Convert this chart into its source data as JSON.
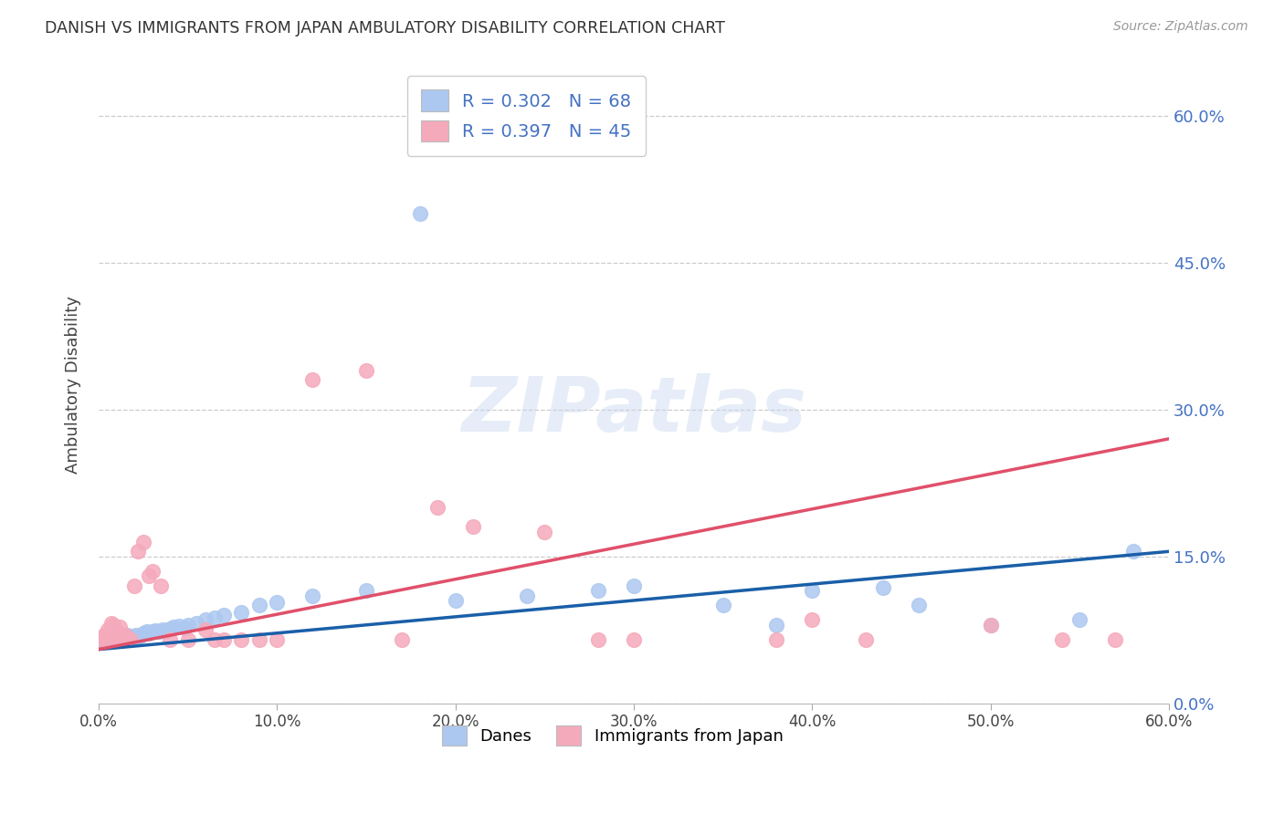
{
  "title": "DANISH VS IMMIGRANTS FROM JAPAN AMBULATORY DISABILITY CORRELATION CHART",
  "source": "Source: ZipAtlas.com",
  "ylabel": "Ambulatory Disability",
  "watermark": "ZIPatlas",
  "xlim": [
    0.0,
    0.6
  ],
  "ylim": [
    0.0,
    0.65
  ],
  "ytick_vals": [
    0.0,
    0.15,
    0.3,
    0.45,
    0.6
  ],
  "xtick_vals": [
    0.0,
    0.1,
    0.2,
    0.3,
    0.4,
    0.5,
    0.6
  ],
  "danes_R": 0.302,
  "danes_N": 68,
  "japan_R": 0.397,
  "japan_N": 45,
  "danes_scatter_color": "#adc8f0",
  "japan_scatter_color": "#f5aabb",
  "danes_line_color": "#1a5fa8",
  "japan_line_color": "#e0506a",
  "legend_text_color": "#4472c4",
  "danes_x": [
    0.001,
    0.002,
    0.003,
    0.004,
    0.005,
    0.005,
    0.006,
    0.006,
    0.007,
    0.007,
    0.008,
    0.008,
    0.009,
    0.009,
    0.01,
    0.01,
    0.011,
    0.012,
    0.012,
    0.013,
    0.014,
    0.015,
    0.016,
    0.016,
    0.017,
    0.018,
    0.019,
    0.02,
    0.021,
    0.022,
    0.023,
    0.024,
    0.025,
    0.026,
    0.027,
    0.028,
    0.03,
    0.032,
    0.034,
    0.036,
    0.038,
    0.04,
    0.042,
    0.045,
    0.048,
    0.05,
    0.055,
    0.06,
    0.065,
    0.07,
    0.08,
    0.09,
    0.1,
    0.12,
    0.15,
    0.18,
    0.2,
    0.24,
    0.28,
    0.3,
    0.35,
    0.38,
    0.4,
    0.44,
    0.46,
    0.5,
    0.55,
    0.58
  ],
  "danes_y": [
    0.063,
    0.065,
    0.067,
    0.065,
    0.066,
    0.068,
    0.065,
    0.07,
    0.065,
    0.068,
    0.066,
    0.069,
    0.065,
    0.07,
    0.066,
    0.068,
    0.067,
    0.066,
    0.069,
    0.067,
    0.068,
    0.066,
    0.067,
    0.07,
    0.068,
    0.069,
    0.067,
    0.068,
    0.07,
    0.068,
    0.069,
    0.07,
    0.071,
    0.072,
    0.073,
    0.071,
    0.073,
    0.074,
    0.073,
    0.075,
    0.074,
    0.076,
    0.078,
    0.079,
    0.077,
    0.08,
    0.082,
    0.085,
    0.087,
    0.09,
    0.093,
    0.1,
    0.103,
    0.11,
    0.115,
    0.5,
    0.105,
    0.11,
    0.115,
    0.12,
    0.1,
    0.08,
    0.115,
    0.118,
    0.1,
    0.08,
    0.085,
    0.155
  ],
  "japan_x": [
    0.001,
    0.002,
    0.003,
    0.004,
    0.005,
    0.006,
    0.007,
    0.008,
    0.009,
    0.01,
    0.011,
    0.012,
    0.013,
    0.014,
    0.015,
    0.016,
    0.018,
    0.02,
    0.022,
    0.025,
    0.028,
    0.03,
    0.035,
    0.04,
    0.05,
    0.06,
    0.065,
    0.07,
    0.08,
    0.09,
    0.1,
    0.12,
    0.15,
    0.17,
    0.19,
    0.21,
    0.25,
    0.28,
    0.3,
    0.38,
    0.4,
    0.43,
    0.5,
    0.54,
    0.57
  ],
  "japan_y": [
    0.065,
    0.068,
    0.07,
    0.066,
    0.075,
    0.072,
    0.082,
    0.08,
    0.067,
    0.073,
    0.065,
    0.078,
    0.065,
    0.068,
    0.07,
    0.065,
    0.065,
    0.12,
    0.155,
    0.165,
    0.13,
    0.135,
    0.12,
    0.065,
    0.065,
    0.075,
    0.065,
    0.065,
    0.065,
    0.065,
    0.065,
    0.33,
    0.34,
    0.065,
    0.2,
    0.18,
    0.175,
    0.065,
    0.065,
    0.065,
    0.085,
    0.065,
    0.08,
    0.065,
    0.065
  ]
}
